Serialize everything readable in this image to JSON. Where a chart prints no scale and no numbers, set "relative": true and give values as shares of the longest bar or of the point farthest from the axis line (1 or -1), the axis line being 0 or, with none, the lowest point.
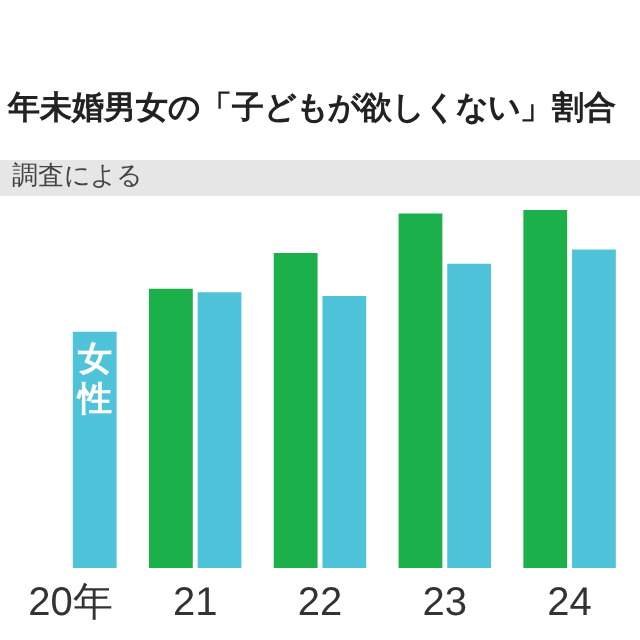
{
  "chart_data": {
    "type": "bar",
    "title": "年未婚男女の「子どもが欲しくない」割合",
    "annotations": [
      "調査による"
    ],
    "relative": true,
    "categories": [
      "20年",
      "21",
      "22",
      "23",
      "24"
    ],
    "series": [
      {
        "color": "#1cb04b",
        "values": [
          null,
          0.78,
          0.88,
          0.99,
          1
        ]
      },
      {
        "name": "女性",
        "color": "#4fc3da",
        "values": [
          0.66,
          0.77,
          0.76,
          0.85,
          0.89
        ]
      }
    ],
    "legend": false,
    "grid": false
  }
}
